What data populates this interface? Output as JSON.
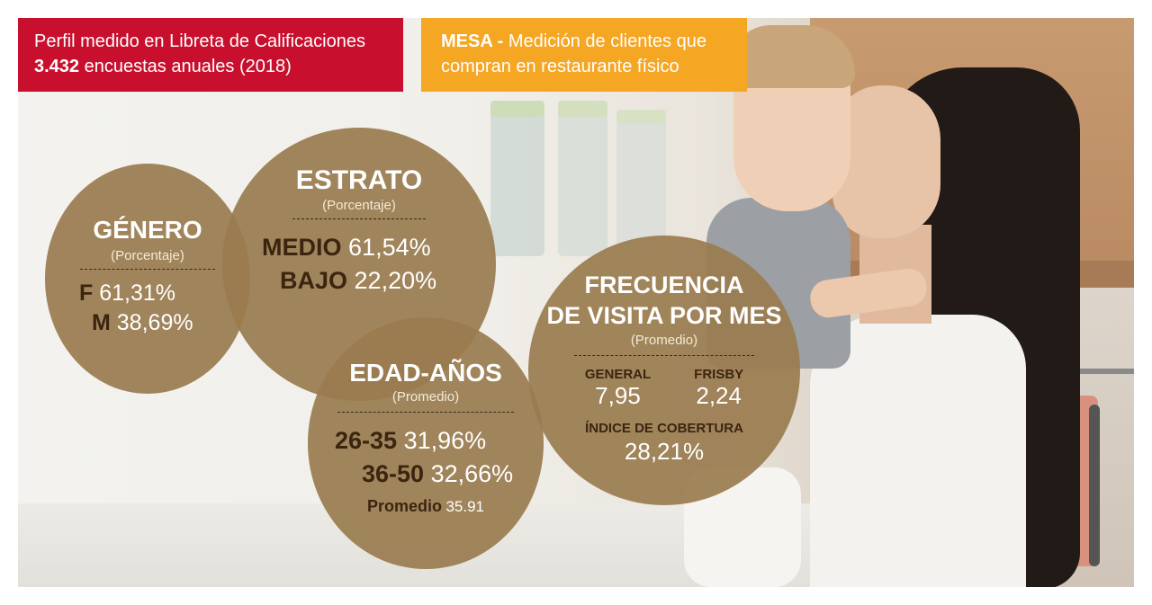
{
  "banner_left": {
    "line1": "Perfil medido en Libreta de Calificaciones",
    "count": "3.432",
    "line2_rest": " encuestas anuales (2018)"
  },
  "banner_right": {
    "label": "MESA -",
    "line1_rest": " Medición de clientes que",
    "line2": "compran en restaurante físico"
  },
  "genero": {
    "title": "GÉNERO",
    "sub": "(Porcentaje)",
    "rows": [
      {
        "key": "F",
        "value": "61,31%"
      },
      {
        "key": "M",
        "value": "38,69%"
      }
    ]
  },
  "estrato": {
    "title": "ESTRATO",
    "sub": "(Porcentaje)",
    "rows": [
      {
        "key": "MEDIO",
        "value": "61,54%"
      },
      {
        "key": "BAJO",
        "value": "22,20%"
      }
    ]
  },
  "edad": {
    "title": "EDAD-AÑOS",
    "sub": "(Promedio)",
    "rows": [
      {
        "key": "26-35",
        "value": "31,96%"
      },
      {
        "key": "36-50",
        "value": "32,66%"
      }
    ],
    "promedio_label": "Promedio",
    "promedio_value": "35.91"
  },
  "frecuencia": {
    "title1": "FRECUENCIA",
    "title2": "DE VISITA POR MES",
    "sub": "(Promedio)",
    "general_label": "GENERAL",
    "general_value": "7,95",
    "frisby_label": "FRISBY",
    "frisby_value": "2,24",
    "indice_label": "ÍNDICE DE COBERTURA",
    "indice_value": "28,21%"
  },
  "colors": {
    "banner_red": "#c8102e",
    "banner_orange": "#f5a623",
    "circle_brown": "#9a7c50",
    "key_dark": "#3b2510"
  }
}
